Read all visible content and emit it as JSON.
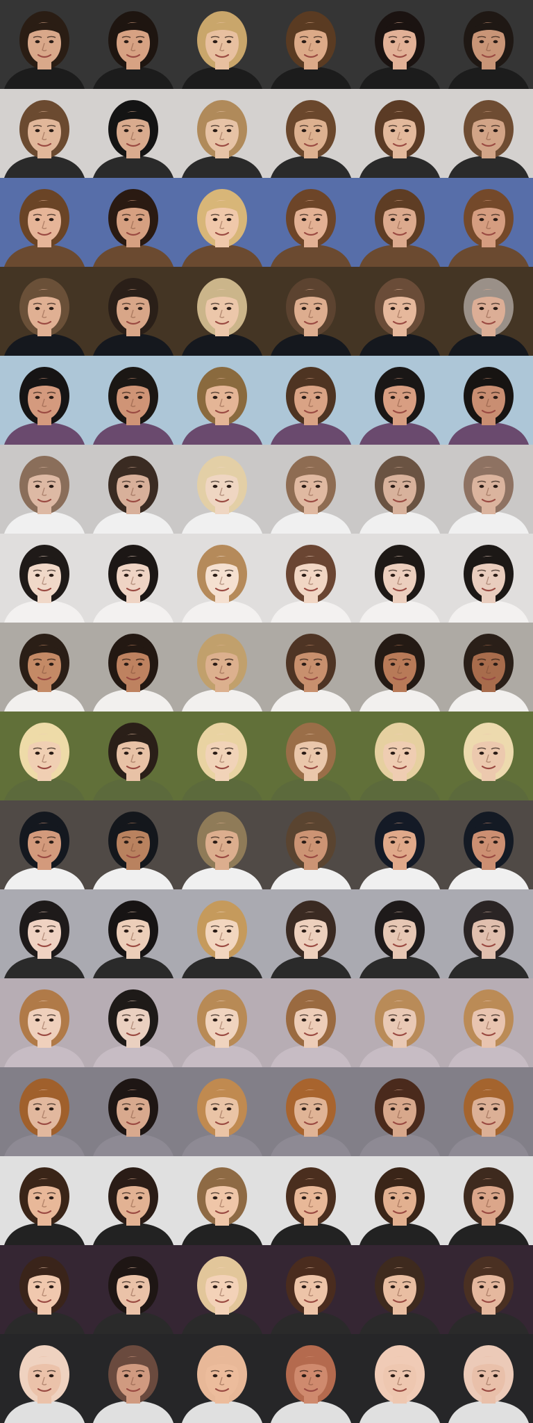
{
  "grid": {
    "columns": 6,
    "rows": [
      {
        "bg": "#3a3a3a",
        "hair": [
          "#2a1d14",
          "#1e1510",
          "#c9a66b",
          "#5a3b22",
          "#1b1311",
          "#1f1814"
        ],
        "skin": [
          "#d9a88a",
          "#d7a283",
          "#e8c0a0",
          "#dcaa88",
          "#e2b197",
          "#c99577"
        ],
        "shirt": "#1c1c1c"
      },
      {
        "bg": "#e6e3e1",
        "hair": [
          "#6b4a30",
          "#141414",
          "#b08a5a",
          "#6a472c",
          "#5b3b25",
          "#6e4c32"
        ],
        "skin": [
          "#e1b79a",
          "#d9ab8e",
          "#e7c3a6",
          "#ddb190",
          "#e3b99c",
          "#d2a487"
        ],
        "shirt": "#2a2a2a"
      },
      {
        "bg": "#5f78b8",
        "hair": [
          "#6a4426",
          "#2a1a12",
          "#d8b678",
          "#6d4528",
          "#5e3d24",
          "#74492a"
        ],
        "skin": [
          "#e6b598",
          "#d6a081",
          "#f0c8aa",
          "#e3b194",
          "#dcaa8e",
          "#d59d80"
        ],
        "shirt": "#6b4a30"
      },
      {
        "bg": "#4a3a28",
        "hair": [
          "#6a5038",
          "#2a1f18",
          "#cbb58a",
          "#5c4330",
          "#6a4c38",
          "#9a9088"
        ],
        "skin": [
          "#e0b093",
          "#d8a688",
          "#ecc7aa",
          "#ddad8f",
          "#e6b89c",
          "#dcae96"
        ],
        "shirt": "#15181e"
      },
      {
        "bg": "#bcd7ea",
        "hair": [
          "#161414",
          "#1b1714",
          "#8a6a3e",
          "#4e3422",
          "#1a1716",
          "#171412"
        ],
        "skin": [
          "#d49a7e",
          "#cf9476",
          "#e4b596",
          "#d9a385",
          "#d89e82",
          "#c98e72"
        ],
        "shirt": "#6a4a6e"
      },
      {
        "bg": "#dcdad8",
        "hair": [
          "#8a6e5a",
          "#3a2b22",
          "#e3cfa6",
          "#8e6c52",
          "#6a5342",
          "#8e7262"
        ],
        "skin": [
          "#ddb9a4",
          "#d8b09a",
          "#efd6c2",
          "#e0b9a1",
          "#d8b29c",
          "#dbb49e"
        ],
        "shirt": "#f0f0f0"
      },
      {
        "bg": "#f3f1f0",
        "hair": [
          "#1f1a18",
          "#1c1715",
          "#b58a5a",
          "#6a4532",
          "#1e1916",
          "#1c1816"
        ],
        "skin": [
          "#f0d8c8",
          "#efd4c4",
          "#f5e0d0",
          "#f1d6c4",
          "#eccfbe",
          "#e9cdbe"
        ],
        "shirt": "#f3f1f0"
      },
      {
        "bg": "#bdb9b2",
        "hair": [
          "#2a1e16",
          "#231812",
          "#c1a06c",
          "#4e3424",
          "#241a14",
          "#2a1f18"
        ],
        "skin": [
          "#c48a66",
          "#be8260",
          "#dcb08e",
          "#c8906e",
          "#b87a58",
          "#a86c4c"
        ],
        "shirt": "#f2f0ee"
      },
      {
        "bg": "#6a7a3e",
        "hair": [
          "#eedba8",
          "#2a1f18",
          "#e9d3a2",
          "#9a6e48",
          "#e6d0a0",
          "#eddaae"
        ],
        "skin": [
          "#f0cfb3",
          "#e8c2a6",
          "#f1d3b8",
          "#eac7ab",
          "#efcdb2",
          "#ecc9ae"
        ],
        "shirt": "#5c6a3c"
      },
      {
        "bg": "#57514c",
        "hair": [
          "#14181f",
          "#14171c",
          "#8f7b58",
          "#5a4430",
          "#141a26",
          "#141a24"
        ],
        "skin": [
          "#d39a7c",
          "#b9825f",
          "#dcae8e",
          "#cc9474",
          "#e0a98a",
          "#cc8f72"
        ],
        "shirt": "#f0f0f0"
      },
      {
        "bg": "#b9b9c0",
        "hair": [
          "#1e1a1a",
          "#171414",
          "#c59a5c",
          "#3a2a22",
          "#1e1a1a",
          "#2a2424"
        ],
        "skin": [
          "#efd2c2",
          "#ecceb9",
          "#f2d6bf",
          "#edd0bd",
          "#e6c7b4",
          "#e0bfae"
        ],
        "shirt": "#2a2a2a"
      },
      {
        "bg": "#c7bcc4",
        "hair": [
          "#b07a48",
          "#1e1a18",
          "#b88a55",
          "#9a6a40",
          "#b98b58",
          "#bb8b56"
        ],
        "skin": [
          "#efd0bc",
          "#ead0c0",
          "#f0d4bf",
          "#edcdb8",
          "#e9c9b5",
          "#e8c4b0"
        ],
        "shirt": "#c7bcc4"
      },
      {
        "bg": "#8e8a94",
        "hair": [
          "#a0602c",
          "#1e1614",
          "#c08a50",
          "#a8642e",
          "#4a2a1c",
          "#a4642e"
        ],
        "skin": [
          "#e2b89e",
          "#d8a98e",
          "#eac4a6",
          "#e0b496",
          "#d8a88c",
          "#dcb096"
        ],
        "shirt": "#8e8a94"
      },
      {
        "bg": "#f4f4f4",
        "hair": [
          "#3a2518",
          "#2a1c16",
          "#8e6a44",
          "#4a2e1e",
          "#3a2518",
          "#3e2a1e"
        ],
        "skin": [
          "#e8b899",
          "#e2b293",
          "#efc6a8",
          "#e8b898",
          "#e2b090",
          "#dba68a"
        ],
        "shirt": "#222222"
      },
      {
        "bg": "#3a2a38",
        "hair": [
          "#3a241a",
          "#1e1614",
          "#e2c69a",
          "#4a2c1e",
          "#3e2a1e",
          "#4a3022"
        ],
        "skin": [
          "#f0c8ae",
          "#eac2a8",
          "#f3d2b8",
          "#edc4a8",
          "#e9bea2",
          "#e5b89e"
        ],
        "shirt": "#2a2a2a"
      },
      {
        "bg": "#2a2a2c",
        "hair": [
          "#efd2c0",
          "#6a4a3e",
          "#e8b898",
          "#b46a4e",
          "#f0cbb6",
          "#eccab8"
        ],
        "skin": [
          "#ebc2aa",
          "#d09a80",
          "#ecbc9c",
          "#cf8a6e",
          "#eec7b0",
          "#e9c0aa"
        ],
        "shirt": "#e0e0e0"
      }
    ]
  }
}
